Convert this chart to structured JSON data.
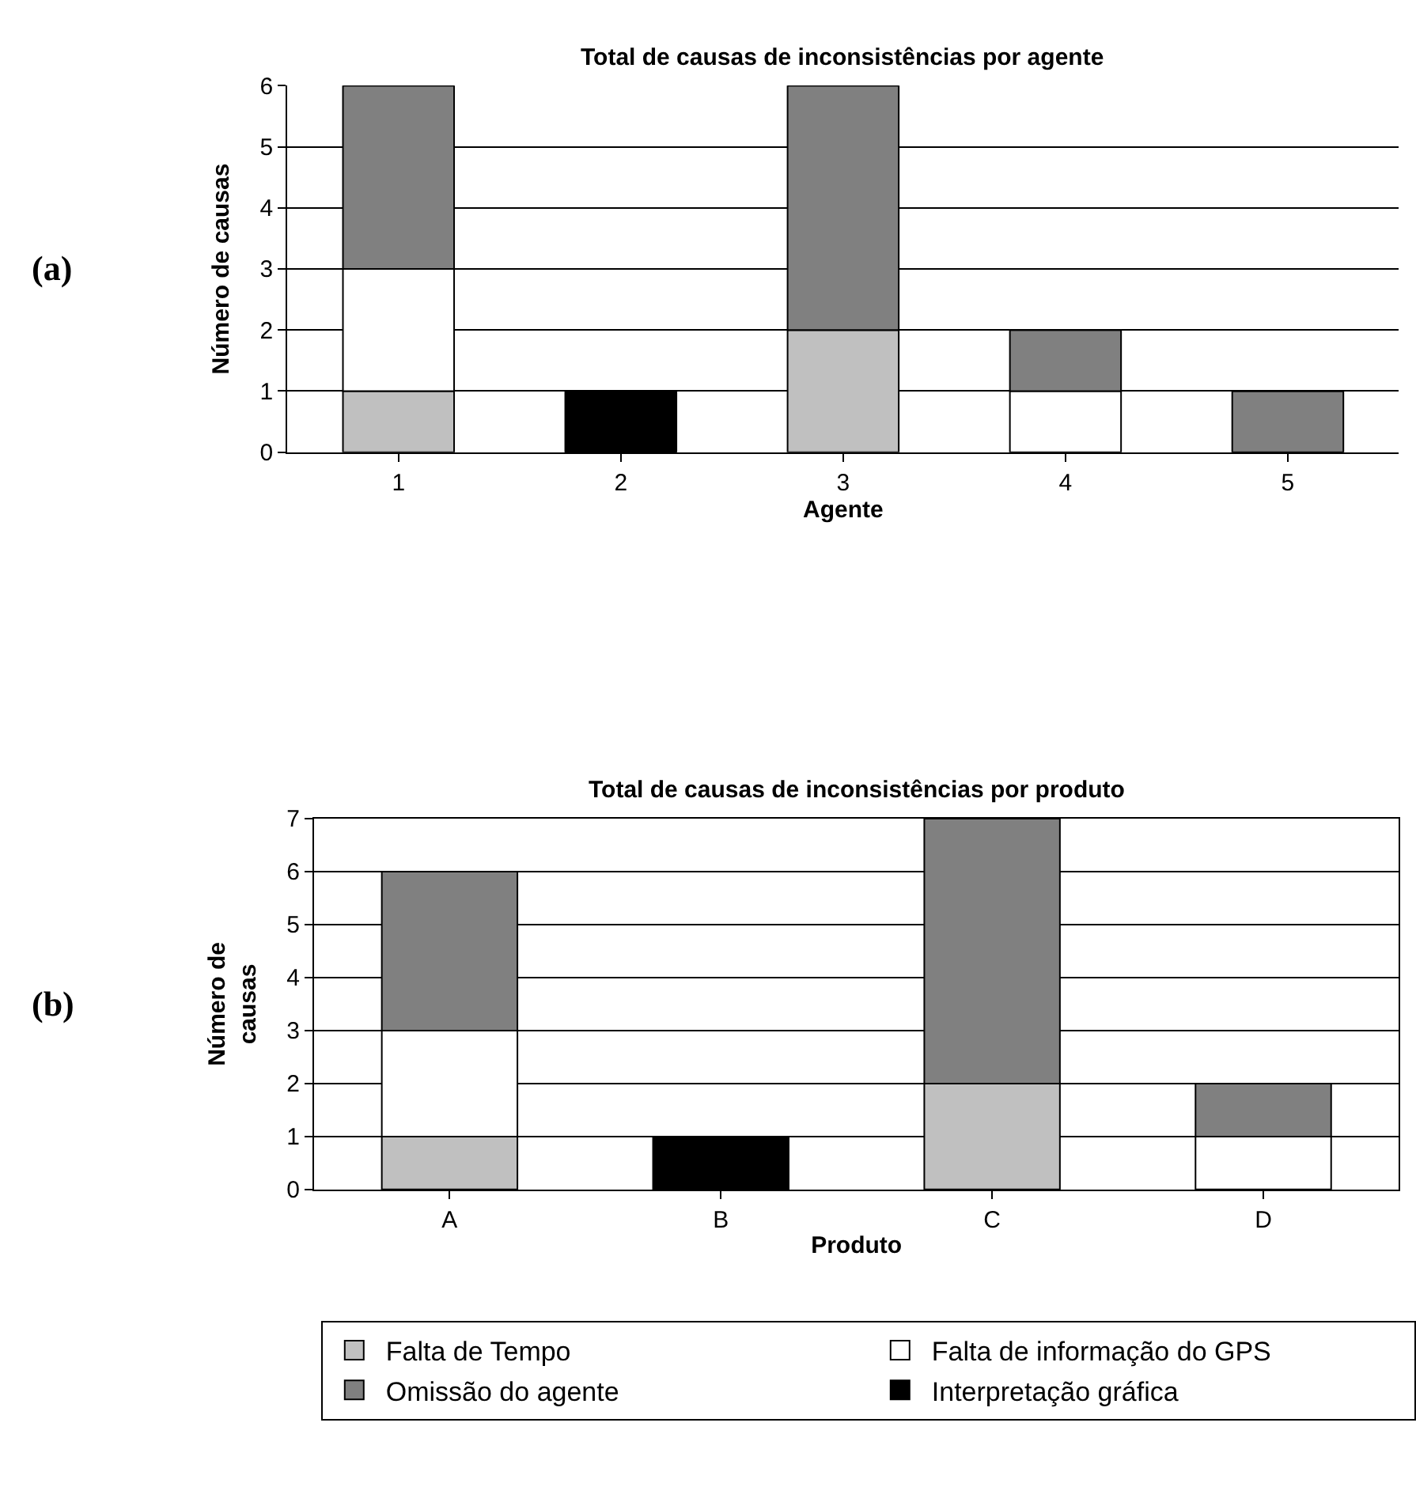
{
  "chart_data": [
    {
      "type": "bar",
      "title": "Total de causas de inconsistências por agente",
      "xlabel": "Agente",
      "ylabel": "Número de causas",
      "annotations": [
        "(a)"
      ],
      "categories": [
        "1",
        "2",
        "3",
        "4",
        "5"
      ],
      "stacked": true,
      "ylim": [
        0,
        6
      ],
      "yticks": [
        0,
        1,
        2,
        3,
        4,
        5,
        6
      ],
      "grid": "y",
      "legend": "bottom",
      "series": [
        {
          "name": "Falta de Tempo",
          "color": "#c0c0c0",
          "values": [
            1,
            0,
            2,
            0,
            0
          ]
        },
        {
          "name": "Falta de informação do GPS",
          "color": "#ffffff",
          "values": [
            2,
            0,
            0,
            1,
            0
          ]
        },
        {
          "name": "Omissão do agente",
          "color": "#808080",
          "values": [
            3,
            0,
            4,
            1,
            1
          ]
        },
        {
          "name": "Interpretação gráfica",
          "color": "#000000",
          "values": [
            0,
            1,
            0,
            0,
            0
          ]
        }
      ]
    },
    {
      "type": "bar",
      "title": "Total de causas de inconsistências por produto",
      "xlabel": "Produto",
      "ylabel": "Número de\ncausas",
      "annotations": [
        "(b)"
      ],
      "categories": [
        "A",
        "B",
        "C",
        "D"
      ],
      "stacked": true,
      "ylim": [
        0,
        7
      ],
      "yticks": [
        0,
        1,
        2,
        3,
        4,
        5,
        6,
        7
      ],
      "grid": "y",
      "series": [
        {
          "color": "#c0c0c0",
          "values": [
            1,
            0,
            2,
            0
          ]
        },
        {
          "color": "#ffffff",
          "values": [
            2,
            0,
            0,
            1
          ]
        },
        {
          "color": "#808080",
          "values": [
            3,
            0,
            5,
            1
          ]
        },
        {
          "color": "#000000",
          "values": [
            0,
            1,
            0,
            0
          ]
        }
      ]
    }
  ]
}
